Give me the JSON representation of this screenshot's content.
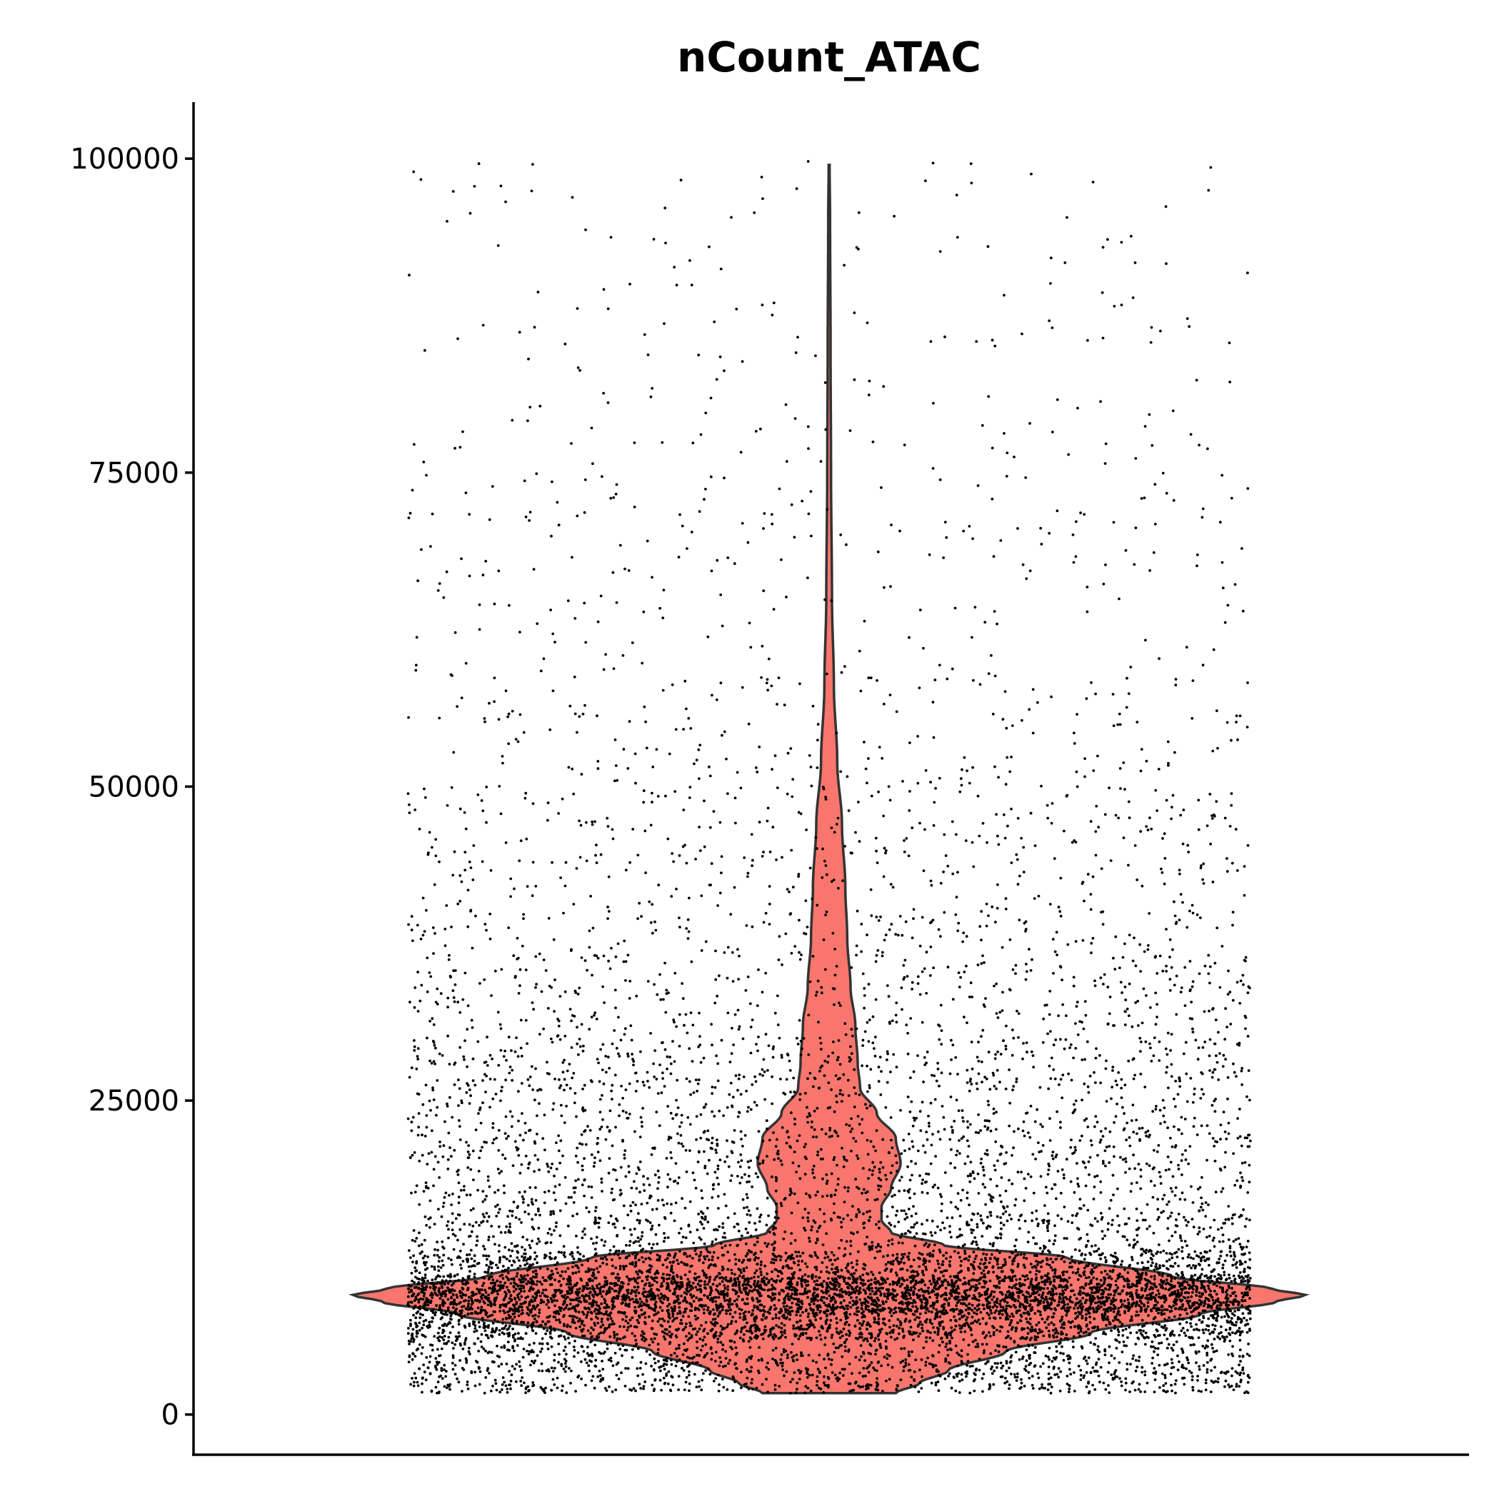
{
  "chart_data": {
    "type": "violin",
    "title": "nCount_ATAC",
    "xlabel": "",
    "ylabel": "",
    "ylim": [
      -3200,
      104500
    ],
    "yticks": [
      0,
      25000,
      50000,
      75000,
      100000
    ],
    "ytick_labels": [
      "0",
      "25000",
      "50000",
      "75000",
      "100000"
    ],
    "grid": false,
    "legend": "none",
    "fill_color": "#F8766D",
    "outline_color": "#333333",
    "point_color": "#000000",
    "series": [
      {
        "data_min": 1700,
        "data_max": 99500,
        "peak_value": 9500,
        "density_profile": [
          [
            1700,
            0.14
          ],
          [
            2500,
            0.19
          ],
          [
            3500,
            0.25
          ],
          [
            5000,
            0.37
          ],
          [
            6500,
            0.55
          ],
          [
            8000,
            0.78
          ],
          [
            9000,
            0.94
          ],
          [
            9500,
            1.0
          ],
          [
            10000,
            0.93
          ],
          [
            11000,
            0.72
          ],
          [
            12500,
            0.5
          ],
          [
            13500,
            0.24
          ],
          [
            14500,
            0.13
          ],
          [
            15500,
            0.11
          ],
          [
            16500,
            0.11
          ],
          [
            18000,
            0.13
          ],
          [
            20000,
            0.15
          ],
          [
            22000,
            0.14
          ],
          [
            24000,
            0.1
          ],
          [
            26000,
            0.065
          ],
          [
            28000,
            0.06
          ],
          [
            31000,
            0.055
          ],
          [
            34000,
            0.045
          ],
          [
            38000,
            0.038
          ],
          [
            42000,
            0.034
          ],
          [
            47000,
            0.027
          ],
          [
            52000,
            0.017
          ],
          [
            58000,
            0.01
          ],
          [
            65000,
            0.006
          ],
          [
            75000,
            0.004
          ],
          [
            85000,
            0.003
          ],
          [
            95000,
            0.002
          ],
          [
            99500,
            0.001
          ]
        ],
        "points_distribution": [
          {
            "from": 1700,
            "to": 6000,
            "count": 1300
          },
          {
            "from": 6000,
            "to": 8000,
            "count": 1200
          },
          {
            "from": 8000,
            "to": 11000,
            "count": 3300
          },
          {
            "from": 11000,
            "to": 13000,
            "count": 1000
          },
          {
            "from": 13000,
            "to": 16000,
            "count": 650
          },
          {
            "from": 16000,
            "to": 23000,
            "count": 1000
          },
          {
            "from": 23000,
            "to": 30000,
            "count": 750
          },
          {
            "from": 30000,
            "to": 40000,
            "count": 600
          },
          {
            "from": 40000,
            "to": 50000,
            "count": 380
          },
          {
            "from": 50000,
            "to": 60000,
            "count": 220
          },
          {
            "from": 60000,
            "to": 75000,
            "count": 200
          },
          {
            "from": 75000,
            "to": 90000,
            "count": 120
          },
          {
            "from": 90000,
            "to": 100000,
            "count": 60
          }
        ]
      }
    ]
  }
}
